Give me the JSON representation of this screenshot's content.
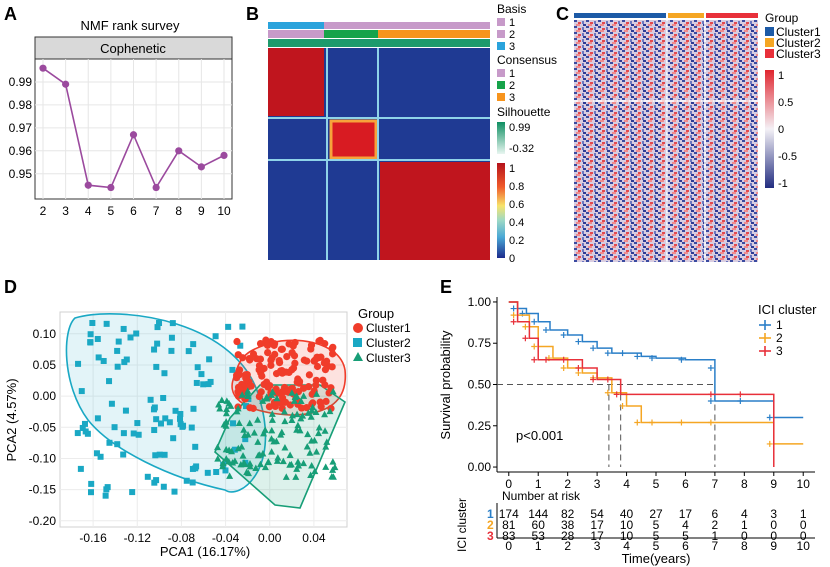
{
  "panel_letters": [
    "A",
    "B",
    "C",
    "D",
    "E"
  ],
  "colors": {
    "purple": "#9b4a9e",
    "red": "#b5121b",
    "blue": "#1c2b8c",
    "teal": "#009e73",
    "c1": "#f03c2a",
    "c2": "#1aa8c4",
    "c3": "#179e77",
    "k1": "#2a7fc8",
    "k2": "#f5a623",
    "k3": "#e8303a",
    "lilac": "#c79ac9",
    "skyblue": "#2aa3dc",
    "orange": "#f7941d",
    "green": "#16a34a"
  },
  "chart_data": [
    {
      "type": "line",
      "panel": "A",
      "title": "NMF rank survey",
      "facet": "Cophenetic",
      "x": [
        2,
        3,
        4,
        5,
        6,
        7,
        8,
        9,
        10
      ],
      "values": [
        0.996,
        0.989,
        0.945,
        0.944,
        0.967,
        0.944,
        0.96,
        0.953,
        0.958
      ],
      "yticks": [
        "0.99",
        "0.98",
        "0.97",
        "0.96",
        "0.95"
      ],
      "ytick_values": [
        0.99,
        0.98,
        0.97,
        0.96,
        0.95
      ],
      "xticks": [
        "2",
        "3",
        "4",
        "5",
        "6",
        "7",
        "8",
        "9",
        "10"
      ],
      "ylim": [
        0.939,
        1.0
      ]
    },
    {
      "type": "heatmap",
      "panel": "B",
      "legend": {
        "basis_title": "Basis",
        "basis_items": [
          "1",
          "2",
          "3"
        ],
        "consensus_title": "Consensus",
        "consensus_items": [
          "1",
          "2",
          "3"
        ],
        "silhouette_title": "Silhouette",
        "silhouette_items": [
          "0.99",
          "-0.32"
        ],
        "scale_ticks": [
          "1",
          "0.8",
          "0.6",
          "0.4",
          "0.2",
          "0"
        ]
      }
    },
    {
      "type": "heatmap",
      "panel": "C",
      "legend": {
        "group_title": "Group",
        "group_items": [
          "Cluster1",
          "Cluster2",
          "Cluster3"
        ],
        "scale_ticks": [
          "1",
          "0.5",
          "0",
          "-0.5",
          "-1"
        ]
      }
    },
    {
      "type": "scatter",
      "panel": "D",
      "xlabel": "PCA1 (16.17%)",
      "ylabel": "PCA2 (4.57%)",
      "xticks": [
        "-0.16",
        "-0.12",
        "-0.08",
        "-0.04",
        "0.00",
        "0.04"
      ],
      "xtick_values": [
        -0.16,
        -0.12,
        -0.08,
        -0.04,
        0.0,
        0.04
      ],
      "yticks": [
        "0.10",
        "0.05",
        "0.00",
        "-0.05",
        "-0.10",
        "-0.15",
        "-0.20"
      ],
      "ytick_values": [
        0.1,
        0.05,
        0.0,
        -0.05,
        -0.1,
        -0.15,
        -0.2
      ],
      "xlim": [
        -0.19,
        0.07
      ],
      "ylim": [
        -0.21,
        0.135
      ],
      "legend_title": "Group",
      "series": [
        "Cluster1",
        "Cluster2",
        "Cluster3"
      ]
    },
    {
      "type": "line",
      "panel": "E",
      "ylabel": "Survival probability",
      "xlabel": "Time(years)",
      "annotation": "p<0.001",
      "legend_title": "ICI cluster",
      "series_names": [
        "1",
        "2",
        "3"
      ],
      "yticks": [
        "1.00",
        "0.75",
        "0.50",
        "0.25",
        "0.00"
      ],
      "ytick_values": [
        1.0,
        0.75,
        0.5,
        0.25,
        0.0
      ],
      "xticks": [
        "0",
        "1",
        "2",
        "3",
        "4",
        "5",
        "6",
        "7",
        "8",
        "9",
        "10"
      ],
      "xlim": [
        -0.4,
        10.4
      ],
      "ylim": [
        -0.03,
        1.03
      ],
      "median_times": [
        3.4,
        3.8,
        7.0
      ],
      "series": [
        {
          "name": "1",
          "x": [
            0,
            0.3,
            0.6,
            1,
            1.4,
            2,
            2.5,
            3,
            3.5,
            4,
            4.5,
            5,
            6,
            7,
            7,
            8,
            9,
            10
          ],
          "y": [
            1,
            0.96,
            0.93,
            0.88,
            0.83,
            0.8,
            0.76,
            0.72,
            0.69,
            0.69,
            0.67,
            0.66,
            0.65,
            0.6,
            0.4,
            0.4,
            0.3,
            0.3
          ]
        },
        {
          "name": "2",
          "x": [
            0,
            0.3,
            0.7,
            1,
            1.5,
            2,
            2.5,
            3,
            3.5,
            4,
            4.5,
            5,
            6,
            7,
            9,
            10
          ],
          "y": [
            1,
            0.92,
            0.85,
            0.73,
            0.66,
            0.6,
            0.57,
            0.54,
            0.45,
            0.37,
            0.27,
            0.27,
            0.27,
            0.27,
            0.14,
            0.14
          ]
        },
        {
          "name": "3",
          "x": [
            0,
            0.3,
            0.7,
            1,
            1.4,
            2,
            2.5,
            3,
            3.5,
            3.8,
            7,
            8,
            9
          ],
          "y": [
            1,
            0.88,
            0.78,
            0.65,
            0.65,
            0.65,
            0.6,
            0.53,
            0.53,
            0.44,
            0.44,
            0.44,
            0
          ]
        }
      ],
      "risk_title": "Number at risk",
      "risk_side_label": "ICI cluster",
      "risk_rows": [
        {
          "name": "1",
          "values": [
            "174",
            "144",
            "82",
            "54",
            "40",
            "27",
            "17",
            "6",
            "4",
            "3",
            "1"
          ]
        },
        {
          "name": "2",
          "values": [
            "81",
            "60",
            "38",
            "17",
            "10",
            "5",
            "4",
            "2",
            "1",
            "0",
            "0"
          ]
        },
        {
          "name": "3",
          "values": [
            "83",
            "53",
            "28",
            "17",
            "10",
            "5",
            "5",
            "1",
            "0",
            "0",
            "0"
          ]
        }
      ]
    }
  ]
}
